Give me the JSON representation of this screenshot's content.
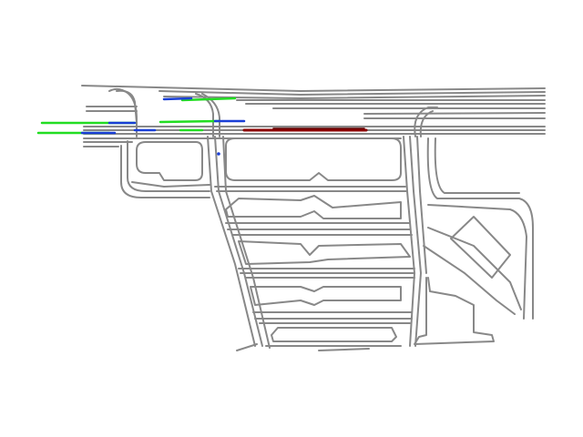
{
  "map": {
    "background": "#ffffff",
    "lane_color": "#888888",
    "island_color": "#888888",
    "trajectories": [
      {
        "name": "trajectory-green-1",
        "color": "#22dd22"
      },
      {
        "name": "trajectory-green-2",
        "color": "#22dd22"
      },
      {
        "name": "trajectory-green-3",
        "color": "#22dd22"
      },
      {
        "name": "trajectory-green-4",
        "color": "#22dd22"
      },
      {
        "name": "trajectory-blue-1",
        "color": "#1a3fd6"
      },
      {
        "name": "trajectory-blue-2",
        "color": "#1a3fd6"
      },
      {
        "name": "trajectory-blue-3",
        "color": "#1a3fd6"
      },
      {
        "name": "trajectory-blue-4",
        "color": "#1a3fd6"
      },
      {
        "name": "trajectory-red-ego",
        "color": "#8b0000"
      }
    ]
  }
}
